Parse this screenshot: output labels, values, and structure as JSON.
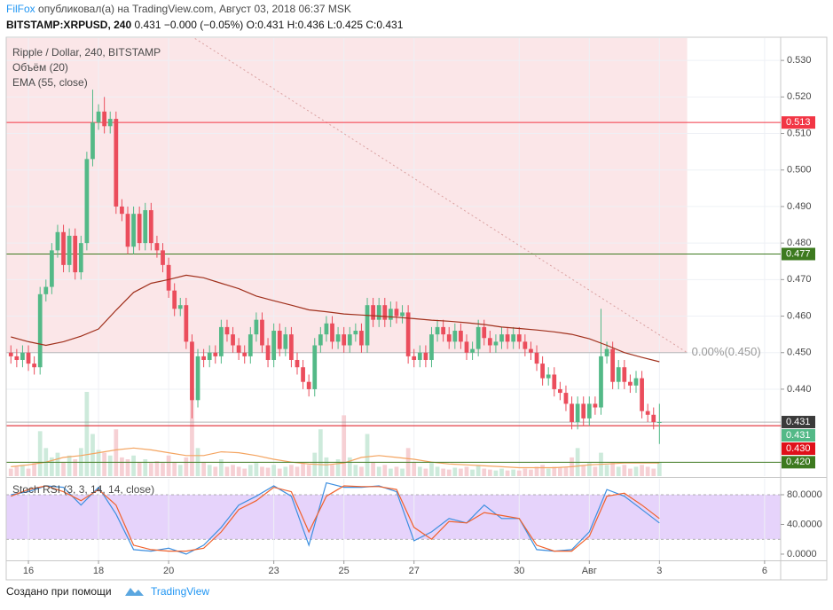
{
  "header": {
    "author": "FilFox",
    "published": "опубликовал(а) на TradingView.com, Август 03, 2018 06:37 MSK",
    "symbol": "BITSTAMP:XRPUSD, 240",
    "quote": "0.431 −0.000 (−0.05%) O:0.431 H:0.436 L:0.425 C:0.431"
  },
  "footer": {
    "text": "Создано при помощи",
    "brand": "TradingView"
  },
  "chart_data": [
    {
      "type": "candlestick",
      "title": "Ripple / Dollar, 240, BITSTAMP",
      "indicators": [
        "Объём (20)",
        "EMA (55, close)"
      ],
      "colors": {
        "up": "#53b987",
        "down": "#eb4d5c",
        "volume_up": "#cdeadb",
        "volume_down": "#f6d0d4"
      },
      "x": [
        -12,
        -8,
        -4,
        0,
        4,
        8,
        12,
        16,
        20,
        24,
        28,
        32,
        36,
        40,
        44,
        48,
        52,
        56,
        60,
        64,
        68,
        72,
        76,
        80,
        84,
        88,
        92,
        96,
        100,
        104,
        108,
        112,
        116,
        120,
        124,
        128,
        132,
        136,
        140,
        144,
        148,
        152,
        156,
        160,
        164,
        168,
        172,
        176,
        180,
        184,
        188,
        192,
        196,
        200,
        204,
        208,
        212,
        216,
        220,
        224,
        228,
        232,
        236,
        240,
        244,
        248,
        252,
        256,
        260,
        264,
        268,
        272,
        276,
        280,
        284,
        288,
        292,
        296,
        300,
        304,
        308,
        312,
        316,
        320,
        324,
        328,
        332,
        336,
        340,
        344,
        348,
        352,
        356,
        360,
        364,
        368,
        372,
        376,
        380,
        384,
        388,
        392,
        396,
        400,
        404,
        408,
        412,
        416,
        420,
        424,
        428,
        432
      ],
      "open": [
        0.45,
        0.449,
        0.448,
        0.45,
        0.447,
        0.446,
        0.466,
        0.468,
        0.478,
        0.483,
        0.474,
        0.482,
        0.472,
        0.48,
        0.503,
        0.513,
        0.516,
        0.512,
        0.514,
        0.49,
        0.488,
        0.479,
        0.488,
        0.48,
        0.489,
        0.48,
        0.478,
        0.474,
        0.467,
        0.462,
        0.463,
        0.453,
        0.437,
        0.449,
        0.448,
        0.45,
        0.449,
        0.457,
        0.455,
        0.452,
        0.45,
        0.449,
        0.455,
        0.459,
        0.452,
        0.448,
        0.456,
        0.451,
        0.455,
        0.448,
        0.446,
        0.442,
        0.44,
        0.452,
        0.455,
        0.458,
        0.453,
        0.455,
        0.452,
        0.455,
        0.456,
        0.452,
        0.463,
        0.459,
        0.463,
        0.459,
        0.462,
        0.46,
        0.461,
        0.449,
        0.448,
        0.45,
        0.448,
        0.455,
        0.457,
        0.455,
        0.453,
        0.456,
        0.453,
        0.45,
        0.451,
        0.457,
        0.454,
        0.452,
        0.453,
        0.455,
        0.453,
        0.455,
        0.453,
        0.451,
        0.45,
        0.447,
        0.443,
        0.444,
        0.44,
        0.439,
        0.436,
        0.431,
        0.436,
        0.432,
        0.436,
        0.435,
        0.449,
        0.451,
        0.442,
        0.446,
        0.442,
        0.441,
        0.443,
        0.434,
        0.433,
        0.431
      ],
      "high": [
        0.452,
        0.451,
        0.452,
        0.452,
        0.449,
        0.468,
        0.47,
        0.48,
        0.485,
        0.485,
        0.484,
        0.484,
        0.482,
        0.505,
        0.522,
        0.518,
        0.52,
        0.516,
        0.516,
        0.492,
        0.49,
        0.49,
        0.49,
        0.491,
        0.491,
        0.482,
        0.48,
        0.476,
        0.469,
        0.465,
        0.465,
        0.455,
        0.451,
        0.451,
        0.452,
        0.452,
        0.459,
        0.459,
        0.457,
        0.454,
        0.452,
        0.457,
        0.461,
        0.461,
        0.454,
        0.458,
        0.458,
        0.457,
        0.457,
        0.45,
        0.448,
        0.444,
        0.454,
        0.457,
        0.46,
        0.46,
        0.457,
        0.457,
        0.457,
        0.458,
        0.458,
        0.465,
        0.465,
        0.465,
        0.465,
        0.464,
        0.464,
        0.463,
        0.463,
        0.451,
        0.452,
        0.452,
        0.457,
        0.459,
        0.459,
        0.457,
        0.458,
        0.458,
        0.455,
        0.453,
        0.459,
        0.459,
        0.456,
        0.455,
        0.457,
        0.457,
        0.457,
        0.457,
        0.455,
        0.453,
        0.452,
        0.449,
        0.446,
        0.446,
        0.442,
        0.441,
        0.438,
        0.438,
        0.438,
        0.438,
        0.438,
        0.462,
        0.453,
        0.453,
        0.448,
        0.448,
        0.444,
        0.445,
        0.445,
        0.436,
        0.435,
        0.436
      ],
      "low": [
        0.447,
        0.446,
        0.446,
        0.445,
        0.444,
        0.444,
        0.464,
        0.466,
        0.476,
        0.472,
        0.472,
        0.47,
        0.47,
        0.478,
        0.501,
        0.511,
        0.51,
        0.51,
        0.488,
        0.486,
        0.477,
        0.477,
        0.478,
        0.478,
        0.478,
        0.476,
        0.472,
        0.465,
        0.46,
        0.46,
        0.451,
        0.432,
        0.435,
        0.446,
        0.446,
        0.447,
        0.447,
        0.453,
        0.45,
        0.448,
        0.447,
        0.447,
        0.453,
        0.45,
        0.446,
        0.446,
        0.449,
        0.449,
        0.446,
        0.444,
        0.44,
        0.438,
        0.438,
        0.45,
        0.453,
        0.451,
        0.451,
        0.45,
        0.45,
        0.453,
        0.45,
        0.45,
        0.457,
        0.457,
        0.457,
        0.457,
        0.458,
        0.458,
        0.447,
        0.446,
        0.446,
        0.446,
        0.446,
        0.453,
        0.453,
        0.451,
        0.451,
        0.451,
        0.448,
        0.448,
        0.449,
        0.452,
        0.45,
        0.45,
        0.451,
        0.451,
        0.451,
        0.451,
        0.449,
        0.448,
        0.445,
        0.441,
        0.441,
        0.438,
        0.437,
        0.434,
        0.429,
        0.429,
        0.43,
        0.43,
        0.433,
        0.433,
        0.447,
        0.44,
        0.44,
        0.44,
        0.439,
        0.439,
        0.432,
        0.431,
        0.429,
        0.425
      ],
      "close": [
        0.449,
        0.448,
        0.45,
        0.447,
        0.446,
        0.466,
        0.468,
        0.478,
        0.483,
        0.474,
        0.482,
        0.472,
        0.48,
        0.503,
        0.513,
        0.516,
        0.512,
        0.514,
        0.49,
        0.488,
        0.479,
        0.488,
        0.48,
        0.489,
        0.48,
        0.478,
        0.474,
        0.467,
        0.462,
        0.463,
        0.453,
        0.437,
        0.449,
        0.448,
        0.45,
        0.449,
        0.457,
        0.455,
        0.452,
        0.45,
        0.449,
        0.455,
        0.459,
        0.452,
        0.448,
        0.456,
        0.451,
        0.455,
        0.448,
        0.446,
        0.442,
        0.44,
        0.452,
        0.455,
        0.458,
        0.453,
        0.455,
        0.452,
        0.455,
        0.456,
        0.452,
        0.463,
        0.459,
        0.463,
        0.459,
        0.462,
        0.46,
        0.461,
        0.449,
        0.448,
        0.45,
        0.448,
        0.455,
        0.457,
        0.455,
        0.453,
        0.456,
        0.453,
        0.45,
        0.451,
        0.457,
        0.454,
        0.452,
        0.453,
        0.455,
        0.453,
        0.455,
        0.453,
        0.451,
        0.45,
        0.447,
        0.443,
        0.444,
        0.44,
        0.439,
        0.436,
        0.431,
        0.436,
        0.432,
        0.436,
        0.435,
        0.449,
        0.451,
        0.442,
        0.446,
        0.442,
        0.441,
        0.443,
        0.434,
        0.433,
        0.431,
        0.431
      ],
      "volume": [
        8,
        10,
        12,
        8,
        14,
        48,
        30,
        20,
        25,
        15,
        22,
        18,
        30,
        90,
        45,
        28,
        25,
        22,
        50,
        20,
        18,
        22,
        15,
        18,
        14,
        16,
        14,
        22,
        15,
        12,
        20,
        85,
        30,
        15,
        12,
        10,
        18,
        10,
        12,
        10,
        8,
        12,
        14,
        10,
        9,
        12,
        8,
        10,
        12,
        10,
        14,
        12,
        25,
        50,
        20,
        12,
        18,
        65,
        20,
        12,
        10,
        45,
        15,
        10,
        12,
        8,
        10,
        8,
        30,
        15,
        10,
        8,
        14,
        10,
        8,
        7,
        9,
        8,
        10,
        7,
        12,
        8,
        7,
        6,
        8,
        6,
        7,
        6,
        8,
        7,
        10,
        12,
        8,
        10,
        9,
        10,
        20,
        30,
        12,
        14,
        10,
        25,
        12,
        15,
        10,
        12,
        8,
        10,
        12,
        10,
        8,
        15
      ],
      "ema": {
        "color": "#a0301c",
        "x": [
          -12,
          0,
          12,
          24,
          36,
          48,
          60,
          72,
          84,
          96,
          108,
          120,
          132,
          144,
          156,
          168,
          180,
          192,
          204,
          216,
          228,
          240,
          252,
          264,
          276,
          288,
          300,
          312,
          324,
          336,
          348,
          360,
          372,
          384,
          396,
          408,
          420,
          432
        ],
        "values": [
          0.4543,
          0.453,
          0.452,
          0.453,
          0.4545,
          0.4565,
          0.4616,
          0.4665,
          0.469,
          0.47,
          0.4712,
          0.4705,
          0.469,
          0.4675,
          0.4655,
          0.4642,
          0.463,
          0.4617,
          0.4612,
          0.4606,
          0.4603,
          0.46,
          0.4597,
          0.4593,
          0.4589,
          0.4586,
          0.4582,
          0.4577,
          0.457,
          0.4566,
          0.4562,
          0.4557,
          0.455,
          0.4538,
          0.452,
          0.45,
          0.4487,
          0.4475
        ]
      },
      "volume_ma": {
        "color": "#f4a460",
        "x": [
          -12,
          0,
          12,
          24,
          36,
          48,
          60,
          72,
          84,
          96,
          108,
          120,
          132,
          144,
          156,
          168,
          180,
          192,
          204,
          216,
          228,
          240,
          252,
          264,
          276,
          288,
          300,
          312,
          324,
          336,
          348,
          360,
          372,
          384,
          396,
          408,
          420,
          432
        ],
        "values": [
          10,
          12,
          15,
          20,
          22,
          25,
          28,
          30,
          28,
          25,
          22,
          22,
          26,
          25,
          22,
          18,
          15,
          13,
          12,
          14,
          20,
          22,
          20,
          18,
          15,
          13,
          12,
          11,
          10,
          9,
          9,
          9,
          10,
          12,
          13,
          14,
          14,
          14
        ]
      },
      "levels": [
        {
          "value": 0.513,
          "color": "#f23645"
        },
        {
          "value": 0.477,
          "color": "#3d7a1f"
        },
        {
          "value": 0.43,
          "label": "0.430",
          "color": "#e0101a"
        },
        {
          "value": 0.42,
          "label": "0.420",
          "color": "#3d7a1f"
        }
      ],
      "price_labels": [
        {
          "value": 0.431,
          "color": "#3a3a3a"
        },
        {
          "value": 0.431,
          "color": "#53b987"
        }
      ],
      "fib": {
        "value": 0.45,
        "x_end": 451,
        "label": "0.00%(0.450)",
        "color": "#fbe6e8"
      },
      "trend_line": {
        "x": [
          114,
          451
        ],
        "y": [
          0.536,
          0.45
        ],
        "color": "#d9a0a0"
      },
      "xlim": [
        -15.2,
        515
      ],
      "xticks": [
        {
          "value": 0,
          "label": "16"
        },
        {
          "value": 48,
          "label": "18"
        },
        {
          "value": 96,
          "label": "20"
        },
        {
          "value": 168,
          "label": "23"
        },
        {
          "value": 216,
          "label": "25"
        },
        {
          "value": 264,
          "label": "27"
        },
        {
          "value": 336,
          "label": "30"
        },
        {
          "value": 384,
          "label": "Авг"
        },
        {
          "value": 432,
          "label": "3"
        },
        {
          "value": 504,
          "label": "6"
        }
      ],
      "ylim": [
        0.4162,
        0.5361
      ],
      "yticks": [
        {
          "value": 0.42,
          "label": "0.420"
        },
        {
          "value": 0.43,
          "label": "0.430"
        },
        {
          "value": 0.44,
          "label": "0.440"
        },
        {
          "value": 0.45,
          "label": "0.450"
        },
        {
          "value": 0.46,
          "label": "0.460"
        },
        {
          "value": 0.47,
          "label": "0.470"
        },
        {
          "value": 0.48,
          "label": "0.480"
        },
        {
          "value": 0.49,
          "label": "0.490"
        },
        {
          "value": 0.5,
          "label": "0.500"
        },
        {
          "value": 0.51,
          "label": "0.510"
        },
        {
          "value": 0.52,
          "label": "0.520"
        },
        {
          "value": 0.53,
          "label": "0.530"
        }
      ],
      "grid": true
    },
    {
      "type": "line",
      "title": "Stoch RSI (3, 3, 14, 14, close)",
      "x": [
        -12,
        0,
        12,
        24,
        36,
        48,
        60,
        72,
        84,
        96,
        108,
        120,
        132,
        144,
        156,
        168,
        180,
        192,
        204,
        216,
        228,
        240,
        252,
        264,
        276,
        288,
        300,
        312,
        324,
        336,
        348,
        360,
        372,
        384,
        396,
        408,
        420,
        432
      ],
      "series": [
        {
          "color": "#3d8fe0",
          "values": [
            80,
            84,
            92,
            90,
            66,
            90,
            54,
            6,
            4,
            8,
            0,
            12,
            36,
            66,
            78,
            92,
            78,
            12,
            96,
            90,
            90,
            92,
            84,
            18,
            30,
            48,
            42,
            66,
            48,
            48,
            6,
            4,
            6,
            30,
            87,
            78,
            60,
            42
          ]
        },
        {
          "color": "#f0622d",
          "values": [
            78,
            87,
            92,
            84,
            72,
            87,
            66,
            12,
            6,
            4,
            4,
            8,
            30,
            60,
            72,
            90,
            84,
            30,
            78,
            92,
            91,
            91,
            87,
            36,
            20,
            44,
            42,
            56,
            52,
            48,
            12,
            4,
            4,
            24,
            78,
            82,
            66,
            48
          ]
        }
      ],
      "band": [
        20,
        80
      ],
      "band_color": "#e6d3fb",
      "ylim": [
        -8.4,
        101.5
      ],
      "yticks": [
        {
          "value": 0,
          "label": "0.0000"
        },
        {
          "value": 40,
          "label": "40.0000"
        },
        {
          "value": 80,
          "label": "80.0000"
        }
      ]
    }
  ]
}
